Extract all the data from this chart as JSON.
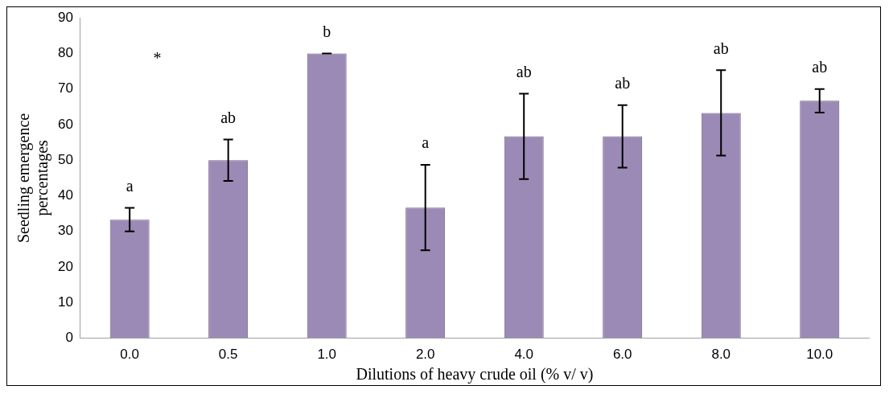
{
  "chart_data": {
    "type": "bar",
    "xlabel": "Dilutions of heavy crude oil (% v/ v)",
    "ylabel": "Seedling emergence percentages",
    "categories": [
      "0.0",
      "0.5",
      "1.0",
      "2.0",
      "4.0",
      "6.0",
      "8.0",
      "10.0"
    ],
    "values": [
      33.3,
      50,
      80,
      36.7,
      56.7,
      56.7,
      63.3,
      66.7
    ],
    "errors": [
      3.3,
      5.8,
      0,
      12,
      12,
      8.8,
      12,
      3.3
    ],
    "color": "#9b8ab5",
    "ylim": [
      0,
      90
    ],
    "yticks": [
      0,
      10,
      20,
      30,
      40,
      50,
      60,
      70,
      80,
      90
    ],
    "grid": false,
    "legend": false,
    "annotations": [
      "a",
      "ab",
      "b",
      "a",
      "ab",
      "ab",
      "ab",
      "ab",
      "*"
    ]
  }
}
